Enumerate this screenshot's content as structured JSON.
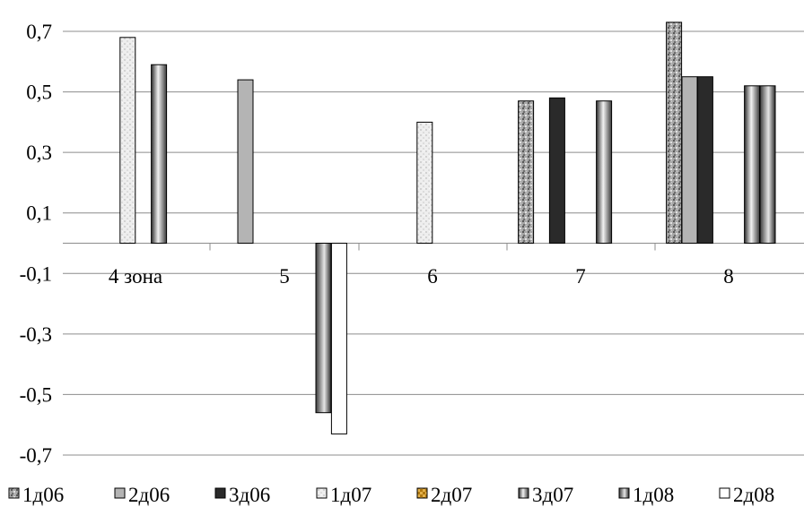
{
  "chart_data": {
    "type": "bar",
    "title": "",
    "xlabel": "",
    "ylabel": "",
    "ylim": [
      -0.7,
      0.8
    ],
    "yticks": [
      0.7,
      0.5,
      0.3,
      0.1,
      -0.1,
      -0.3,
      -0.5,
      -0.7
    ],
    "ytick_labels": [
      "0,7",
      "0,5",
      "0,3",
      "0,1",
      "-0,1",
      "-0,3",
      "-0,5",
      "-0,7"
    ],
    "grid": true,
    "legend_position": "bottom",
    "categories": [
      "4 зона",
      "5",
      "6",
      "7",
      "8"
    ],
    "series": [
      {
        "name": "1д06",
        "values": [
          0,
          0,
          0,
          0.47,
          0.73
        ],
        "pattern": "speckle-dark",
        "color": "#9a9a9a"
      },
      {
        "name": "2д06",
        "values": [
          0,
          0.54,
          0,
          0,
          0.55
        ],
        "pattern": "solid",
        "color": "#b4b4b4"
      },
      {
        "name": "3д06",
        "values": [
          0,
          0,
          0,
          0.48,
          0.55
        ],
        "pattern": "solid",
        "color": "#2a2a2a"
      },
      {
        "name": "1д07",
        "values": [
          0.68,
          0,
          0.4,
          0,
          0
        ],
        "pattern": "speckle-light",
        "color": "#ececec"
      },
      {
        "name": "2д07",
        "values": [
          0,
          0,
          0,
          0,
          0
        ],
        "pattern": "checker",
        "color": "#c8901a"
      },
      {
        "name": "3д07",
        "values": [
          0.59,
          0,
          0,
          0.47,
          0.52
        ],
        "pattern": "gradient",
        "color": "#606060"
      },
      {
        "name": "1д08",
        "values": [
          0,
          -0.56,
          0,
          0,
          0.52
        ],
        "pattern": "gradient-alt",
        "color": "#555555"
      },
      {
        "name": "2д08",
        "values": [
          0,
          -0.63,
          0,
          0,
          0
        ],
        "pattern": "white",
        "color": "#ffffff"
      }
    ]
  }
}
